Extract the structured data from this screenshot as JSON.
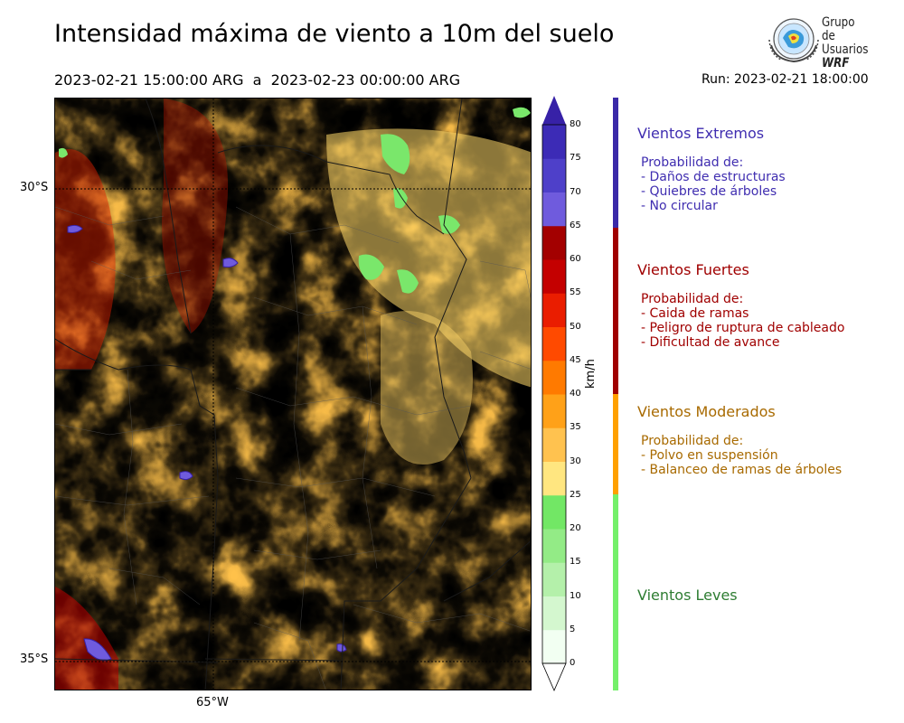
{
  "title": "Intensidad máxima de viento a 10m del suelo",
  "period": "2023-02-21 15:00:00 ARG  a  2023-02-23 00:00:00 ARG",
  "run": "Run: 2023-02-21 18:00:00",
  "logo": {
    "line1": "Grupo de",
    "line2": "Usuarios",
    "line3": "WRF"
  },
  "map": {
    "lat_labels": [
      "30°S",
      "35°S"
    ],
    "lon_label": "65°W"
  },
  "colorbar": {
    "unit": "km/h",
    "ticks": [
      "0",
      "5",
      "10",
      "15",
      "20",
      "25",
      "30",
      "35",
      "40",
      "45",
      "50",
      "55",
      "60",
      "65",
      "70",
      "75",
      "80"
    ],
    "colors": [
      "#f2fff2",
      "#d4f7cf",
      "#b4f0aa",
      "#93eb86",
      "#72e765",
      "#ffe680",
      "#ffc24f",
      "#ffa118",
      "#ff7a00",
      "#ff4a00",
      "#ea1d00",
      "#c40000",
      "#a30000",
      "#6f5bdd",
      "#4e40c9",
      "#3c2bb6",
      "#3721a7"
    ]
  },
  "categories": [
    {
      "title": "Vientos Extremos",
      "color": "#3f2db0",
      "bar": "#3a29a8",
      "lines": [
        "Probabilidad de:",
        "- Daños de estructuras",
        "- Quiebres de árboles",
        "- No circular"
      ]
    },
    {
      "title": "Vientos Fuertes",
      "color": "#a00000",
      "bar": "#a00000",
      "lines": [
        "Probabilidad de:",
        "- Caida de ramas",
        "- Peligro de ruptura de cableado",
        "- Dificultad de avance"
      ]
    },
    {
      "title": "Vientos Moderados",
      "color": "#a86a00",
      "bar": "#ffa000",
      "lines": [
        "Probabilidad de:",
        "- Polvo en suspensión",
        "- Balanceo de ramas de árboles"
      ]
    },
    {
      "title": "Vientos Leves",
      "color": "#2e7d32",
      "bar": "#74f06a",
      "lines": []
    }
  ]
}
